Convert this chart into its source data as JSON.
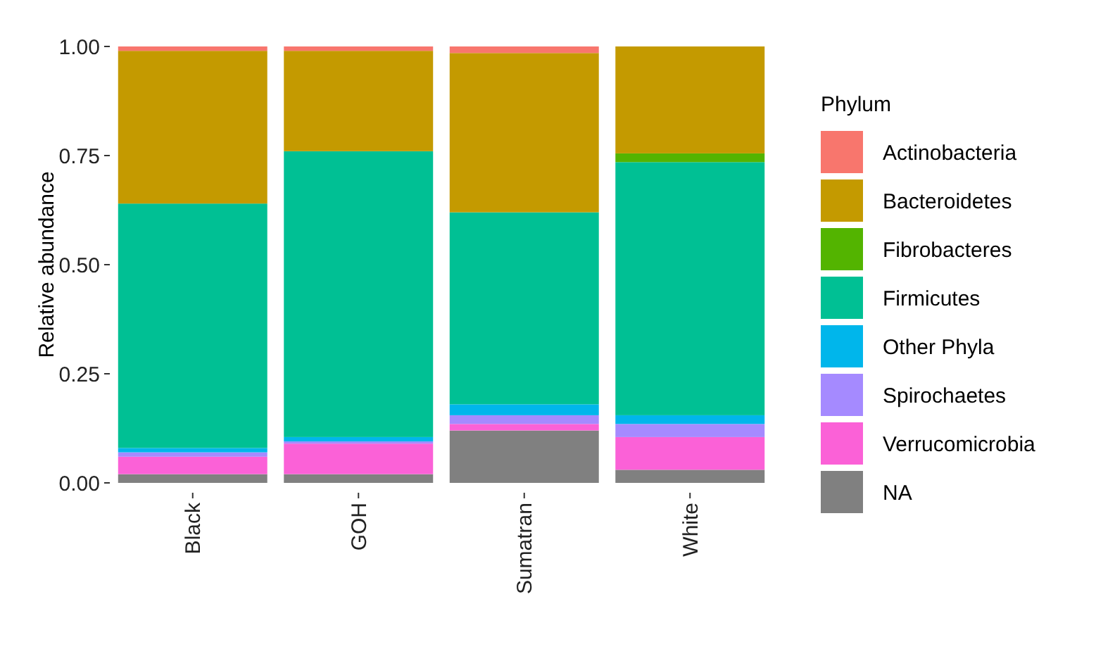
{
  "chart_data": {
    "type": "bar",
    "stacked": true,
    "ylabel": "Relative abundance",
    "legend_title": "Phylum",
    "legend": "right",
    "grid": false,
    "categories": [
      "Black",
      "GOH",
      "Sumatran",
      "White"
    ],
    "ylim": [
      0,
      1
    ],
    "yticks": [
      {
        "value": 0,
        "label": "0.00"
      },
      {
        "value": 0.25,
        "label": "0.25"
      },
      {
        "value": 0.5,
        "label": "0.50"
      },
      {
        "value": 0.75,
        "label": "0.75"
      },
      {
        "value": 1,
        "label": "1.00"
      }
    ],
    "series": [
      {
        "name": "NA",
        "color": "#808080",
        "values": [
          0.02,
          0.02,
          0.12,
          0.03
        ]
      },
      {
        "name": "Verrucomicrobia",
        "color": "#fb61d7",
        "values": [
          0.04,
          0.07,
          0.015,
          0.075
        ]
      },
      {
        "name": "Spirochaetes",
        "color": "#a58aff",
        "values": [
          0.01,
          0.005,
          0.02,
          0.03
        ]
      },
      {
        "name": "Other Phyla",
        "color": "#00b6eb",
        "values": [
          0.01,
          0.01,
          0.025,
          0.02
        ]
      },
      {
        "name": "Firmicutes",
        "color": "#00c094",
        "values": [
          0.56,
          0.655,
          0.44,
          0.58
        ]
      },
      {
        "name": "Fibrobacteres",
        "color": "#53b400",
        "values": [
          0,
          0,
          0,
          0.02
        ]
      },
      {
        "name": "Bacteroidetes",
        "color": "#c49a00",
        "values": [
          0.35,
          0.23,
          0.365,
          0.245
        ]
      },
      {
        "name": "Actinobacteria",
        "color": "#f8766d",
        "values": [
          0.01,
          0.01,
          0.015,
          0
        ]
      }
    ]
  }
}
